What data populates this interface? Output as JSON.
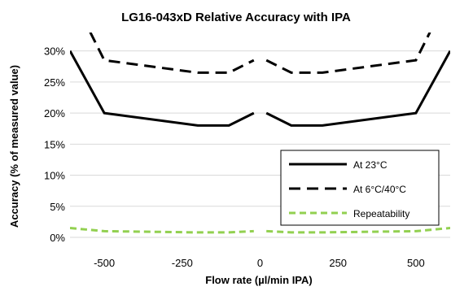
{
  "chart_data": {
    "type": "line",
    "title": "LG16-043xD Relative Accuracy with IPA",
    "xlabel": "Flow rate (µl/min IPA)",
    "ylabel": "Accuracy (% of measured value)",
    "xlim": [
      -610,
      610
    ],
    "ylim": [
      0,
      0.31
    ],
    "x_ticks": [
      -500,
      -250,
      0,
      250,
      500
    ],
    "x_tick_labels": [
      "-500",
      "-250",
      "0",
      "250",
      "500"
    ],
    "y_ticks": [
      0,
      0.05,
      0.1,
      0.15,
      0.2,
      0.25,
      0.3
    ],
    "y_tick_labels": [
      "0%",
      "5%",
      "10%",
      "15%",
      "20%",
      "25%",
      "30%"
    ],
    "gridlines": "horizontal",
    "legend_position": "bottom-right",
    "series": [
      {
        "name": "At 23°C",
        "color": "#000000",
        "dash": "solid",
        "segments": [
          [
            [
              -610,
              0.3
            ],
            [
              -500,
              0.2
            ],
            [
              -200,
              0.18
            ],
            [
              -100,
              0.18
            ],
            [
              -20,
              0.2
            ]
          ],
          [
            [
              20,
              0.2
            ],
            [
              100,
              0.18
            ],
            [
              200,
              0.18
            ],
            [
              500,
              0.2
            ],
            [
              610,
              0.3
            ]
          ]
        ]
      },
      {
        "name": "At 6°C/40°C",
        "color": "#000000",
        "dash": "dashed",
        "segments": [
          [
            [
              -545,
              0.33
            ],
            [
              -500,
              0.285
            ],
            [
              -200,
              0.265
            ],
            [
              -100,
              0.265
            ],
            [
              -20,
              0.285
            ]
          ],
          [
            [
              20,
              0.285
            ],
            [
              100,
              0.265
            ],
            [
              200,
              0.265
            ],
            [
              500,
              0.285
            ],
            [
              545,
              0.33
            ]
          ]
        ]
      },
      {
        "name": "Repeatability",
        "color": "#92d050",
        "dash": "dashed",
        "segments": [
          [
            [
              -610,
              0.015
            ],
            [
              -500,
              0.01
            ],
            [
              -200,
              0.008
            ],
            [
              -100,
              0.008
            ],
            [
              -20,
              0.01
            ]
          ],
          [
            [
              20,
              0.01
            ],
            [
              100,
              0.008
            ],
            [
              200,
              0.008
            ],
            [
              500,
              0.01
            ],
            [
              610,
              0.015
            ]
          ]
        ]
      }
    ]
  }
}
